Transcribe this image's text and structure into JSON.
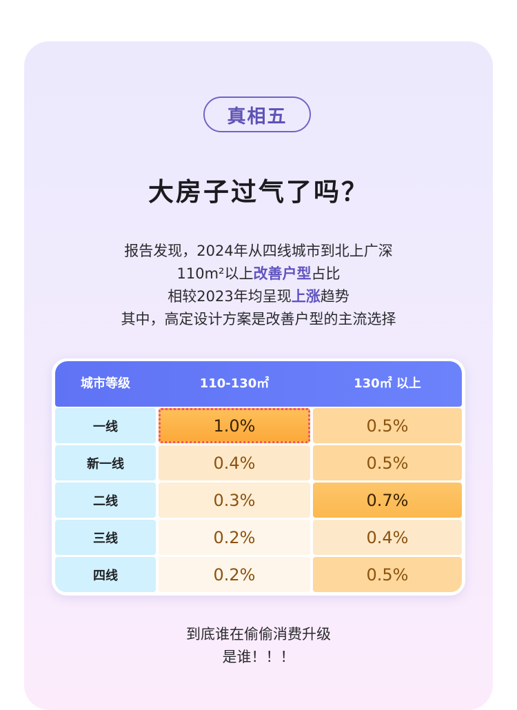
{
  "badge": "真相五",
  "title": "大房子过气了吗？",
  "intro": {
    "line1": "报告发现，2024年从四线城市到北上广深",
    "line2_pre": "110m²以上",
    "line2_hl": "改善户型",
    "line2_post": "占比",
    "line3_pre": "相较2023年均呈现",
    "line3_hl": "上涨",
    "line3_post": "趋势",
    "line4": "其中，高定设计方案是改善户型的主流选择"
  },
  "table": {
    "headers": [
      "城市等级",
      "110-130㎡",
      "130㎡ 以上"
    ],
    "rows": [
      {
        "label": "一线",
        "v1": "1.0%",
        "v2": "0.5%"
      },
      {
        "label": "新一线",
        "v1": "0.4%",
        "v2": "0.5%"
      },
      {
        "label": "二线",
        "v1": "0.3%",
        "v2": "0.7%"
      },
      {
        "label": "三线",
        "v1": "0.2%",
        "v2": "0.4%"
      },
      {
        "label": "四线",
        "v1": "0.2%",
        "v2": "0.5%"
      }
    ]
  },
  "colors": {
    "accent": "#5f54bf",
    "header_blue": "#6579f8",
    "row_label_bg": "#d0f1fd",
    "highlight_border": "#f0506e"
  },
  "footer": {
    "line1": "到底谁在偷偷消费升级",
    "line2": "是谁！！！"
  }
}
